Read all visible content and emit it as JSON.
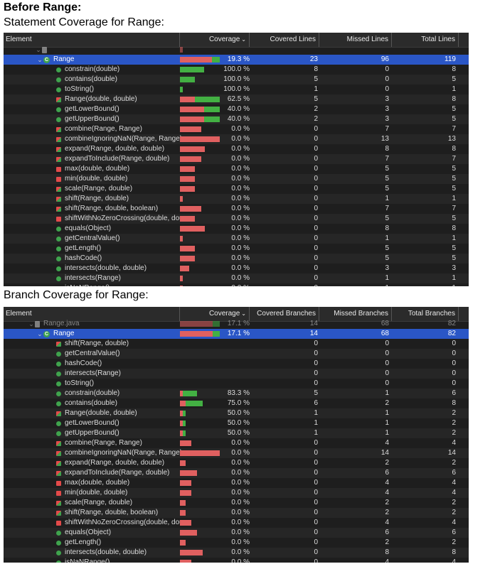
{
  "heading_before": "Before Range:",
  "stmt_title": "Statement Coverage for Range:",
  "branch_title": "Branch Coverage for Range:",
  "colors": {
    "covered": "#43b043",
    "missed": "#e06060",
    "selected": "#2a56c6",
    "background": "#1e1e1e"
  },
  "statement": {
    "headers": {
      "element": "Element",
      "coverage": "Coverage",
      "covered": "Covered Lines",
      "missed": "Missed Lines",
      "total": "Total Lines"
    },
    "rows": [
      {
        "name": "",
        "icon": "file-icon",
        "indent": 0,
        "cov": "",
        "c": "",
        "m": "",
        "t": "",
        "partial": true,
        "fc": 0,
        "fm": 0.08
      },
      {
        "name": "Range",
        "icon": "class-icon",
        "indent": 1,
        "cov": "19.3 %",
        "c": "23",
        "m": "96",
        "t": "119",
        "selected": true,
        "fc": 0.19,
        "fm": 0.81
      },
      {
        "name": "constrain(double)",
        "icon": "green",
        "indent": 2,
        "cov": "100.0 %",
        "c": "8",
        "m": "0",
        "t": "8",
        "fc": 0.6,
        "fm": 0
      },
      {
        "name": "contains(double)",
        "icon": "green",
        "indent": 2,
        "cov": "100.0 %",
        "c": "5",
        "m": "0",
        "t": "5",
        "fc": 0.38,
        "fm": 0
      },
      {
        "name": "toString()",
        "icon": "green",
        "indent": 2,
        "cov": "100.0 %",
        "c": "1",
        "m": "0",
        "t": "1",
        "fc": 0.08,
        "fm": 0
      },
      {
        "name": "Range(double, double)",
        "icon": "mixed",
        "indent": 2,
        "cov": "62.5 %",
        "c": "5",
        "m": "3",
        "t": "8",
        "fc": 0.62,
        "fm": 0.38
      },
      {
        "name": "getLowerBound()",
        "icon": "green",
        "indent": 2,
        "cov": "40.0 %",
        "c": "2",
        "m": "3",
        "t": "5",
        "fc": 0.4,
        "fm": 0.6
      },
      {
        "name": "getUpperBound()",
        "icon": "green",
        "indent": 2,
        "cov": "40.0 %",
        "c": "2",
        "m": "3",
        "t": "5",
        "fc": 0.4,
        "fm": 0.6
      },
      {
        "name": "combine(Range, Range)",
        "icon": "mixed",
        "indent": 2,
        "cov": "0.0 %",
        "c": "0",
        "m": "7",
        "t": "7",
        "fc": 0,
        "fm": 0.54
      },
      {
        "name": "combineIgnoringNaN(Range, Range)",
        "icon": "mixed",
        "indent": 2,
        "cov": "0.0 %",
        "c": "0",
        "m": "13",
        "t": "13",
        "fc": 0,
        "fm": 1
      },
      {
        "name": "expand(Range, double, double)",
        "icon": "mixed",
        "indent": 2,
        "cov": "0.0 %",
        "c": "0",
        "m": "8",
        "t": "8",
        "fc": 0,
        "fm": 0.62
      },
      {
        "name": "expandToInclude(Range, double)",
        "icon": "mixed",
        "indent": 2,
        "cov": "0.0 %",
        "c": "0",
        "m": "7",
        "t": "7",
        "fc": 0,
        "fm": 0.54
      },
      {
        "name": "max(double, double)",
        "icon": "red",
        "indent": 2,
        "cov": "0.0 %",
        "c": "0",
        "m": "5",
        "t": "5",
        "fc": 0,
        "fm": 0.38
      },
      {
        "name": "min(double, double)",
        "icon": "red",
        "indent": 2,
        "cov": "0.0 %",
        "c": "0",
        "m": "5",
        "t": "5",
        "fc": 0,
        "fm": 0.38
      },
      {
        "name": "scale(Range, double)",
        "icon": "mixed",
        "indent": 2,
        "cov": "0.0 %",
        "c": "0",
        "m": "5",
        "t": "5",
        "fc": 0,
        "fm": 0.38
      },
      {
        "name": "shift(Range, double)",
        "icon": "mixed",
        "indent": 2,
        "cov": "0.0 %",
        "c": "0",
        "m": "1",
        "t": "1",
        "fc": 0,
        "fm": 0.08
      },
      {
        "name": "shift(Range, double, boolean)",
        "icon": "mixed",
        "indent": 2,
        "cov": "0.0 %",
        "c": "0",
        "m": "7",
        "t": "7",
        "fc": 0,
        "fm": 0.54
      },
      {
        "name": "shiftWithNoZeroCrossing(double, dou",
        "icon": "red",
        "indent": 2,
        "cov": "0.0 %",
        "c": "0",
        "m": "5",
        "t": "5",
        "fc": 0,
        "fm": 0.38
      },
      {
        "name": "equals(Object)",
        "icon": "green",
        "indent": 2,
        "cov": "0.0 %",
        "c": "0",
        "m": "8",
        "t": "8",
        "fc": 0,
        "fm": 0.62
      },
      {
        "name": "getCentralValue()",
        "icon": "green",
        "indent": 2,
        "cov": "0.0 %",
        "c": "0",
        "m": "1",
        "t": "1",
        "fc": 0,
        "fm": 0.08
      },
      {
        "name": "getLength()",
        "icon": "green",
        "indent": 2,
        "cov": "0.0 %",
        "c": "0",
        "m": "5",
        "t": "5",
        "fc": 0,
        "fm": 0.38
      },
      {
        "name": "hashCode()",
        "icon": "green",
        "indent": 2,
        "cov": "0.0 %",
        "c": "0",
        "m": "5",
        "t": "5",
        "fc": 0,
        "fm": 0.38
      },
      {
        "name": "intersects(double, double)",
        "icon": "green",
        "indent": 2,
        "cov": "0.0 %",
        "c": "0",
        "m": "3",
        "t": "3",
        "fc": 0,
        "fm": 0.23
      },
      {
        "name": "intersects(Range)",
        "icon": "green",
        "indent": 2,
        "cov": "0.0 %",
        "c": "0",
        "m": "1",
        "t": "1",
        "fc": 0,
        "fm": 0.08
      },
      {
        "name": "isNaNRange()",
        "icon": "green",
        "indent": 2,
        "cov": "0.0 %",
        "c": "0",
        "m": "1",
        "t": "1",
        "fc": 0,
        "fm": 0.08
      }
    ]
  },
  "branch": {
    "headers": {
      "element": "Element",
      "coverage": "Coverage",
      "covered": "Covered Branches",
      "missed": "Missed Branches",
      "total": "Total Branches"
    },
    "rows": [
      {
        "name": "Range.java",
        "icon": "file-icon",
        "indent": 1,
        "cov": "17.1 %",
        "c": "14",
        "m": "68",
        "t": "82",
        "partial": true,
        "fc": 0.17,
        "fm": 0.83
      },
      {
        "name": "Range",
        "icon": "class-icon",
        "indent": 1,
        "cov": "17.1 %",
        "c": "14",
        "m": "68",
        "t": "82",
        "selected": true,
        "fc": 0.17,
        "fm": 0.83
      },
      {
        "name": "shift(Range, double)",
        "icon": "mixed",
        "indent": 2,
        "cov": "",
        "c": "0",
        "m": "0",
        "t": "0",
        "fc": 0,
        "fm": 0
      },
      {
        "name": "getCentralValue()",
        "icon": "green",
        "indent": 2,
        "cov": "",
        "c": "0",
        "m": "0",
        "t": "0",
        "fc": 0,
        "fm": 0
      },
      {
        "name": "hashCode()",
        "icon": "green",
        "indent": 2,
        "cov": "",
        "c": "0",
        "m": "0",
        "t": "0",
        "fc": 0,
        "fm": 0
      },
      {
        "name": "intersects(Range)",
        "icon": "green",
        "indent": 2,
        "cov": "",
        "c": "0",
        "m": "0",
        "t": "0",
        "fc": 0,
        "fm": 0
      },
      {
        "name": "toString()",
        "icon": "green",
        "indent": 2,
        "cov": "",
        "c": "0",
        "m": "0",
        "t": "0",
        "fc": 0,
        "fm": 0
      },
      {
        "name": "constrain(double)",
        "icon": "green",
        "indent": 2,
        "cov": "83.3 %",
        "c": "5",
        "m": "1",
        "t": "6",
        "fc": 0.36,
        "fm": 0.07
      },
      {
        "name": "contains(double)",
        "icon": "green",
        "indent": 2,
        "cov": "75.0 %",
        "c": "6",
        "m": "2",
        "t": "8",
        "fc": 0.43,
        "fm": 0.14
      },
      {
        "name": "Range(double, double)",
        "icon": "mixed",
        "indent": 2,
        "cov": "50.0 %",
        "c": "1",
        "m": "1",
        "t": "2",
        "fc": 0.07,
        "fm": 0.07
      },
      {
        "name": "getLowerBound()",
        "icon": "green",
        "indent": 2,
        "cov": "50.0 %",
        "c": "1",
        "m": "1",
        "t": "2",
        "fc": 0.07,
        "fm": 0.07
      },
      {
        "name": "getUpperBound()",
        "icon": "green",
        "indent": 2,
        "cov": "50.0 %",
        "c": "1",
        "m": "1",
        "t": "2",
        "fc": 0.07,
        "fm": 0.07
      },
      {
        "name": "combine(Range, Range)",
        "icon": "mixed",
        "indent": 2,
        "cov": "0.0 %",
        "c": "0",
        "m": "4",
        "t": "4",
        "fc": 0,
        "fm": 0.29
      },
      {
        "name": "combineIgnoringNaN(Range, Range)",
        "icon": "mixed",
        "indent": 2,
        "cov": "0.0 %",
        "c": "0",
        "m": "14",
        "t": "14",
        "fc": 0,
        "fm": 1
      },
      {
        "name": "expand(Range, double, double)",
        "icon": "mixed",
        "indent": 2,
        "cov": "0.0 %",
        "c": "0",
        "m": "2",
        "t": "2",
        "fc": 0,
        "fm": 0.14
      },
      {
        "name": "expandToInclude(Range, double)",
        "icon": "mixed",
        "indent": 2,
        "cov": "0.0 %",
        "c": "0",
        "m": "6",
        "t": "6",
        "fc": 0,
        "fm": 0.43
      },
      {
        "name": "max(double, double)",
        "icon": "red",
        "indent": 2,
        "cov": "0.0 %",
        "c": "0",
        "m": "4",
        "t": "4",
        "fc": 0,
        "fm": 0.29
      },
      {
        "name": "min(double, double)",
        "icon": "red",
        "indent": 2,
        "cov": "0.0 %",
        "c": "0",
        "m": "4",
        "t": "4",
        "fc": 0,
        "fm": 0.29
      },
      {
        "name": "scale(Range, double)",
        "icon": "mixed",
        "indent": 2,
        "cov": "0.0 %",
        "c": "0",
        "m": "2",
        "t": "2",
        "fc": 0,
        "fm": 0.14
      },
      {
        "name": "shift(Range, double, boolean)",
        "icon": "mixed",
        "indent": 2,
        "cov": "0.0 %",
        "c": "0",
        "m": "2",
        "t": "2",
        "fc": 0,
        "fm": 0.14
      },
      {
        "name": "shiftWithNoZeroCrossing(double, dou",
        "icon": "red",
        "indent": 2,
        "cov": "0.0 %",
        "c": "0",
        "m": "4",
        "t": "4",
        "fc": 0,
        "fm": 0.29
      },
      {
        "name": "equals(Object)",
        "icon": "green",
        "indent": 2,
        "cov": "0.0 %",
        "c": "0",
        "m": "6",
        "t": "6",
        "fc": 0,
        "fm": 0.43
      },
      {
        "name": "getLength()",
        "icon": "green",
        "indent": 2,
        "cov": "0.0 %",
        "c": "0",
        "m": "2",
        "t": "2",
        "fc": 0,
        "fm": 0.14
      },
      {
        "name": "intersects(double, double)",
        "icon": "green",
        "indent": 2,
        "cov": "0.0 %",
        "c": "0",
        "m": "8",
        "t": "8",
        "fc": 0,
        "fm": 0.57
      },
      {
        "name": "isNaNRange()",
        "icon": "green",
        "indent": 2,
        "cov": "0.0 %",
        "c": "0",
        "m": "4",
        "t": "4",
        "fc": 0,
        "fm": 0.29
      }
    ]
  }
}
